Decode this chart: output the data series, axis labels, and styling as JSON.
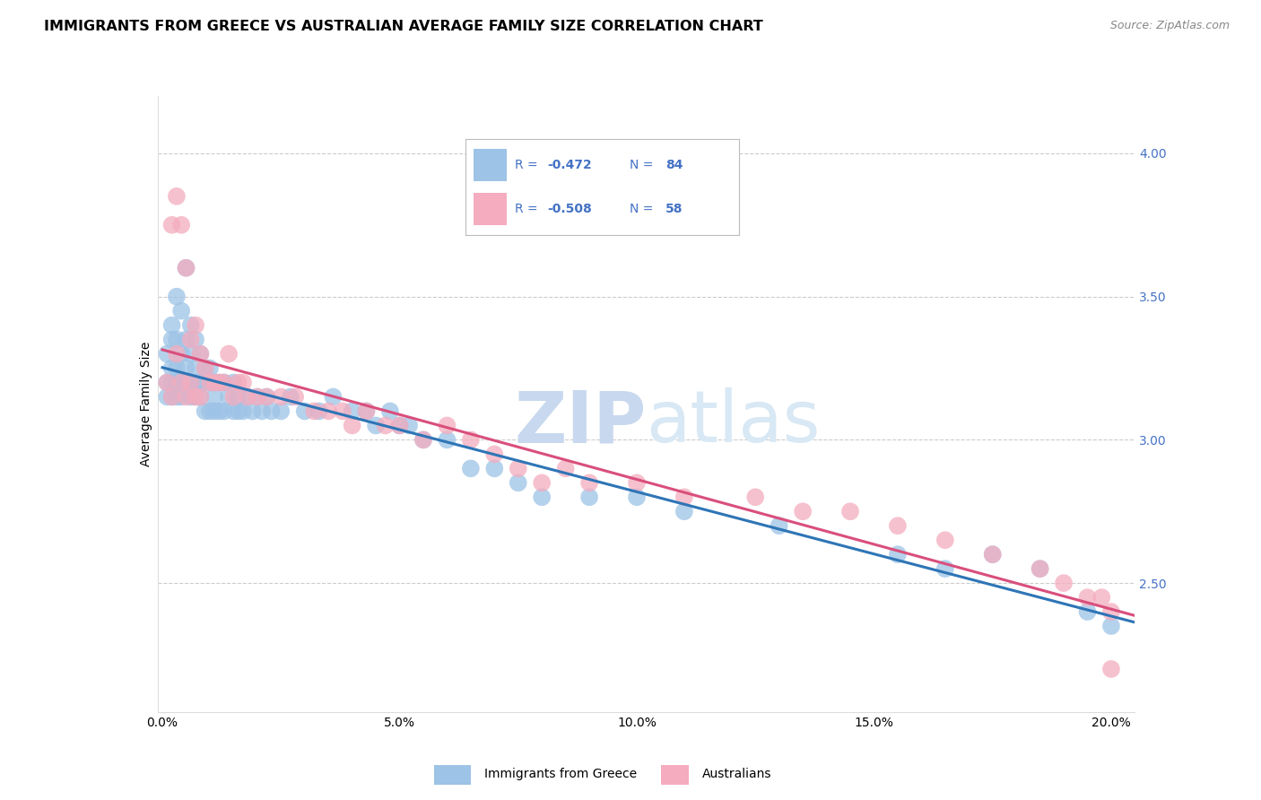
{
  "title": "IMMIGRANTS FROM GREECE VS AUSTRALIAN AVERAGE FAMILY SIZE CORRELATION CHART",
  "source": "Source: ZipAtlas.com",
  "ylabel": "Average Family Size",
  "right_tick_color": "#4472C4",
  "ylim": [
    2.05,
    4.2
  ],
  "xlim": [
    -0.001,
    0.205
  ],
  "yticks_right": [
    2.5,
    3.0,
    3.5,
    4.0
  ],
  "xticks": [
    0.0,
    0.05,
    0.1,
    0.15,
    0.2
  ],
  "xtick_labels": [
    "0.0%",
    "5.0%",
    "10.0%",
    "15.0%",
    "20.0%"
  ],
  "blue_scatter_x": [
    0.001,
    0.001,
    0.001,
    0.002,
    0.002,
    0.002,
    0.002,
    0.002,
    0.003,
    0.003,
    0.003,
    0.003,
    0.003,
    0.004,
    0.004,
    0.004,
    0.004,
    0.005,
    0.005,
    0.005,
    0.005,
    0.006,
    0.006,
    0.006,
    0.006,
    0.007,
    0.007,
    0.007,
    0.007,
    0.008,
    0.008,
    0.008,
    0.009,
    0.009,
    0.009,
    0.01,
    0.01,
    0.01,
    0.011,
    0.011,
    0.011,
    0.012,
    0.012,
    0.013,
    0.013,
    0.014,
    0.015,
    0.015,
    0.016,
    0.016,
    0.017,
    0.018,
    0.019,
    0.02,
    0.021,
    0.022,
    0.023,
    0.025,
    0.027,
    0.03,
    0.033,
    0.036,
    0.04,
    0.043,
    0.045,
    0.048,
    0.05,
    0.052,
    0.055,
    0.06,
    0.065,
    0.07,
    0.075,
    0.08,
    0.09,
    0.1,
    0.11,
    0.13,
    0.155,
    0.165,
    0.175,
    0.185,
    0.195,
    0.2
  ],
  "blue_scatter_y": [
    3.3,
    3.2,
    3.15,
    3.4,
    3.35,
    3.25,
    3.2,
    3.15,
    3.5,
    3.35,
    3.25,
    3.2,
    3.15,
    3.45,
    3.3,
    3.2,
    3.15,
    3.6,
    3.35,
    3.25,
    3.2,
    3.4,
    3.3,
    3.2,
    3.15,
    3.35,
    3.25,
    3.2,
    3.15,
    3.3,
    3.2,
    3.15,
    3.25,
    3.2,
    3.1,
    3.25,
    3.2,
    3.1,
    3.2,
    3.15,
    3.1,
    3.2,
    3.1,
    3.2,
    3.1,
    3.15,
    3.2,
    3.1,
    3.15,
    3.1,
    3.1,
    3.15,
    3.1,
    3.15,
    3.1,
    3.15,
    3.1,
    3.1,
    3.15,
    3.1,
    3.1,
    3.15,
    3.1,
    3.1,
    3.05,
    3.1,
    3.05,
    3.05,
    3.0,
    3.0,
    2.9,
    2.9,
    2.85,
    2.8,
    2.8,
    2.8,
    2.75,
    2.7,
    2.6,
    2.55,
    2.6,
    2.55,
    2.4,
    2.35
  ],
  "pink_scatter_x": [
    0.001,
    0.002,
    0.002,
    0.003,
    0.003,
    0.004,
    0.004,
    0.005,
    0.005,
    0.006,
    0.006,
    0.007,
    0.007,
    0.008,
    0.008,
    0.009,
    0.01,
    0.011,
    0.012,
    0.013,
    0.014,
    0.015,
    0.016,
    0.017,
    0.018,
    0.02,
    0.022,
    0.025,
    0.028,
    0.032,
    0.035,
    0.038,
    0.04,
    0.043,
    0.047,
    0.05,
    0.055,
    0.06,
    0.065,
    0.07,
    0.075,
    0.08,
    0.085,
    0.09,
    0.1,
    0.11,
    0.125,
    0.135,
    0.145,
    0.155,
    0.165,
    0.175,
    0.185,
    0.19,
    0.195,
    0.198,
    0.2,
    0.2
  ],
  "pink_scatter_y": [
    3.2,
    3.75,
    3.15,
    3.85,
    3.3,
    3.75,
    3.2,
    3.6,
    3.15,
    3.35,
    3.2,
    3.4,
    3.15,
    3.3,
    3.15,
    3.25,
    3.2,
    3.2,
    3.2,
    3.2,
    3.3,
    3.15,
    3.2,
    3.2,
    3.15,
    3.15,
    3.15,
    3.15,
    3.15,
    3.1,
    3.1,
    3.1,
    3.05,
    3.1,
    3.05,
    3.05,
    3.0,
    3.05,
    3.0,
    2.95,
    2.9,
    2.85,
    2.9,
    2.85,
    2.85,
    2.8,
    2.8,
    2.75,
    2.75,
    2.7,
    2.65,
    2.6,
    2.55,
    2.5,
    2.45,
    2.45,
    2.4,
    2.2
  ],
  "blue_line_color": "#2E75B6",
  "pink_line_color": "#D94F7C",
  "scatter_blue_color": "#9DC3E6",
  "scatter_pink_color": "#F4ACBE",
  "background_color": "#FFFFFF",
  "grid_color": "#CCCCCC",
  "title_fontsize": 11.5,
  "source_fontsize": 9,
  "axis_label_fontsize": 10,
  "tick_fontsize": 10,
  "legend_color": "#4472C4",
  "watermark_zip_color": "#C8D8EE",
  "watermark_atlas_color": "#D8E8F4",
  "watermark_fontsize": 58
}
